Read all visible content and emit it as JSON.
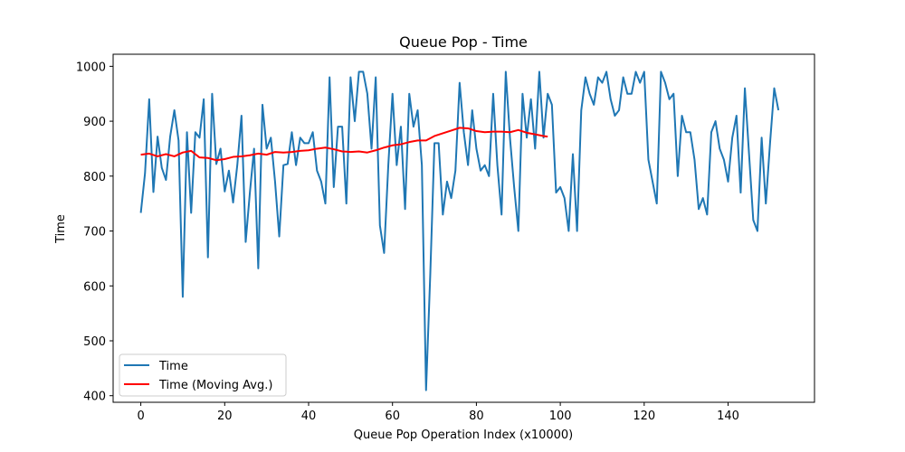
{
  "chart_data": {
    "type": "line",
    "title": "Queue Pop - Time",
    "xlabel": "Queue Pop Operation Index (x10000)",
    "ylabel": "Time",
    "xlim": [
      -6.6,
      160.6
    ],
    "ylim": [
      388,
      1022
    ],
    "xticks": [
      "0",
      "20",
      "40",
      "60",
      "80",
      "100",
      "120",
      "140"
    ],
    "yticks": [
      "400",
      "500",
      "600",
      "700",
      "800",
      "900",
      "1000"
    ],
    "grid": false,
    "legend_position": "lower-left",
    "series": [
      {
        "name": "Time",
        "color": "#1f77b4",
        "x": [
          0,
          1,
          2,
          3,
          4,
          5,
          6,
          7,
          8,
          9,
          10,
          11,
          12,
          13,
          14,
          15,
          16,
          17,
          18,
          19,
          20,
          21,
          22,
          23,
          24,
          25,
          26,
          27,
          28,
          29,
          30,
          31,
          32,
          33,
          34,
          35,
          36,
          37,
          38,
          39,
          40,
          41,
          42,
          43,
          44,
          45,
          46,
          47,
          48,
          49,
          50,
          51,
          52,
          53,
          54,
          55,
          56,
          57,
          58,
          59,
          60,
          61,
          62,
          63,
          64,
          65,
          66,
          67,
          68,
          69,
          70,
          71,
          72,
          73,
          74,
          75,
          76,
          77,
          78,
          79,
          80,
          81,
          82,
          83,
          84,
          85,
          86,
          87,
          88,
          89,
          90,
          91,
          92,
          93,
          94,
          95,
          96,
          97,
          98,
          99,
          100,
          101,
          102,
          103,
          104,
          105,
          106,
          107,
          108,
          109,
          110,
          111,
          112,
          113,
          114,
          115,
          116,
          117,
          118,
          119,
          120,
          121,
          122,
          123,
          124,
          125,
          126,
          127,
          128,
          129,
          130,
          131,
          132,
          133,
          134,
          135,
          136,
          137,
          138,
          139,
          140,
          141,
          142,
          143,
          144,
          145,
          146,
          147,
          148,
          149,
          150,
          151,
          152
        ],
        "values": [
          733,
          805,
          940,
          771,
          872,
          815,
          793,
          872,
          920,
          865,
          580,
          880,
          733,
          880,
          870,
          940,
          652,
          950,
          822,
          850,
          772,
          810,
          752,
          820,
          910,
          680,
          770,
          850,
          632,
          930,
          850,
          870,
          790,
          690,
          820,
          822,
          880,
          820,
          870,
          860,
          860,
          880,
          810,
          790,
          750,
          980,
          780,
          890,
          890,
          750,
          980,
          900,
          990,
          990,
          950,
          850,
          980,
          710,
          660,
          820,
          950,
          820,
          890,
          740,
          950,
          890,
          920,
          820,
          410,
          620,
          860,
          860,
          730,
          790,
          760,
          810,
          970,
          880,
          820,
          920,
          850,
          810,
          820,
          800,
          950,
          820,
          730,
          990,
          870,
          780,
          700,
          950,
          870,
          940,
          850,
          990,
          870,
          950,
          930,
          770,
          780,
          760,
          700,
          840,
          700,
          920,
          980,
          950,
          930,
          980,
          970,
          990,
          940,
          910,
          920,
          980,
          950,
          950,
          990,
          970,
          990,
          830,
          790,
          750,
          990,
          970,
          940,
          950,
          800,
          910,
          880,
          880,
          830,
          740,
          760,
          730,
          880,
          900,
          850,
          830,
          790,
          870,
          910,
          770,
          960,
          840,
          720,
          700,
          870,
          750,
          860,
          960,
          920
        ]
      },
      {
        "name": "Time (Moving Avg.)",
        "color": "#ff0000",
        "x": [
          0,
          2,
          4,
          6,
          8,
          10,
          12,
          14,
          16,
          18,
          20,
          22,
          24,
          26,
          28,
          30,
          32,
          34,
          36,
          38,
          40,
          42,
          44,
          46,
          48,
          50,
          52,
          54,
          56,
          58,
          60,
          62,
          64,
          66,
          68,
          70,
          72,
          74,
          76,
          78,
          80,
          82,
          84,
          86,
          88,
          90,
          92,
          94,
          96,
          97
        ],
        "values": [
          839,
          841,
          836,
          840,
          836,
          843,
          846,
          834,
          833,
          829,
          831,
          835,
          836,
          838,
          841,
          839,
          844,
          843,
          844,
          846,
          847,
          850,
          852,
          849,
          845,
          844,
          845,
          843,
          847,
          852,
          856,
          858,
          862,
          865,
          865,
          873,
          878,
          883,
          888,
          887,
          882,
          880,
          881,
          881,
          880,
          884,
          879,
          876,
          873,
          872
        ]
      }
    ]
  }
}
